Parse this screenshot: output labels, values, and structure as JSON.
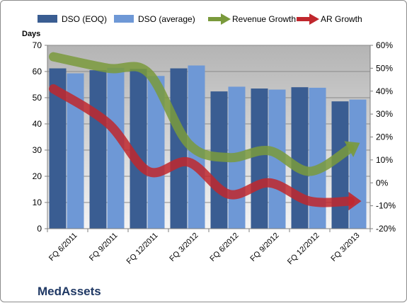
{
  "chart_data": {
    "type": "bar",
    "categories": [
      "FQ 6/2011",
      "FQ 9/2011",
      "FQ 12/2011",
      "FQ 3/2012",
      "FQ 6/2012",
      "FQ 9/2012",
      "FQ 12/2012",
      "FQ 3/2013"
    ],
    "series": [
      {
        "name": "DSO (EOQ)",
        "kind": "bar",
        "axis": "left",
        "color": "#3a5d92",
        "values": [
          61.2,
          60.5,
          61.0,
          61.2,
          52.4,
          53.5,
          54.0,
          48.6
        ]
      },
      {
        "name": "DSO (average)",
        "kind": "bar",
        "axis": "left",
        "color": "#6e98d6",
        "values": [
          59.3,
          61.4,
          58.3,
          62.3,
          54.2,
          53.1,
          53.8,
          49.3
        ]
      },
      {
        "name": "Revenue Growth",
        "kind": "arrow-line",
        "axis": "right",
        "color": "#7a9a3c",
        "values": [
          55,
          50,
          48,
          17,
          11,
          14,
          5,
          15
        ]
      },
      {
        "name": "AR Growth",
        "kind": "arrow-line",
        "axis": "right",
        "color": "#c0272d",
        "values": [
          41,
          26,
          5,
          9,
          -5,
          0,
          -8,
          -8
        ]
      }
    ],
    "ylabel": "Days",
    "ylim": [
      0,
      70
    ],
    "yticks": [
      0,
      10,
      20,
      30,
      40,
      50,
      60,
      70
    ],
    "y2lim": [
      -20,
      60
    ],
    "y2ticks": [
      "-20%",
      "-10%",
      "0%",
      "10%",
      "20%",
      "30%",
      "40%",
      "50%",
      "60%"
    ],
    "y2values": [
      -20,
      -10,
      0,
      10,
      20,
      30,
      40,
      50,
      60
    ],
    "grid": true,
    "legend": "top",
    "company": "MedAssets"
  }
}
